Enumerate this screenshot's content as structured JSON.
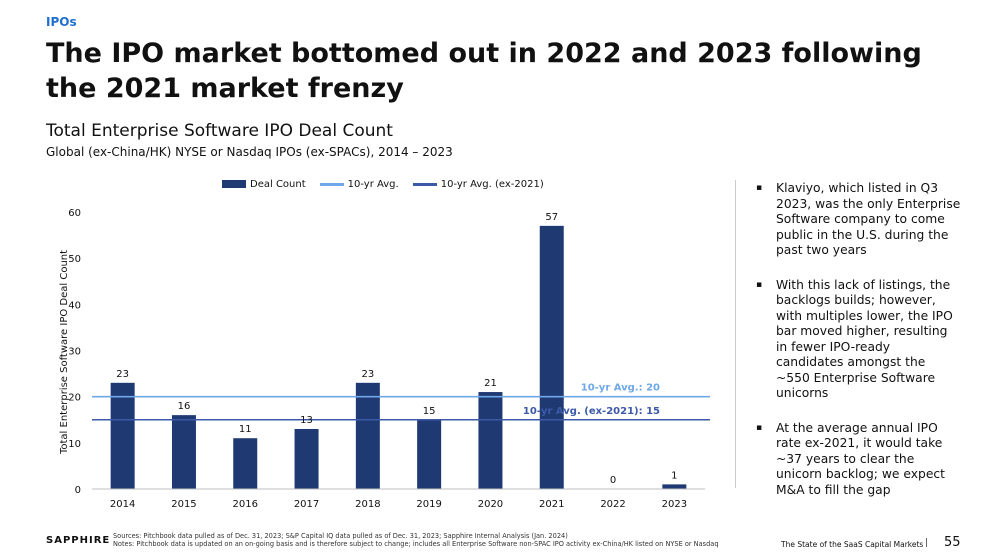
{
  "header": {
    "section": "IPOs",
    "headline": "The IPO market bottomed out in 2022 and 2023 following the 2021 market frenzy"
  },
  "chart_data": {
    "type": "bar",
    "title": "Total Enterprise Software IPO Deal Count",
    "subtitle": "Global (ex-China/HK) NYSE or Nasdaq IPOs (ex-SPACs), 2014 – 2023",
    "categories": [
      "2014",
      "2015",
      "2016",
      "2017",
      "2018",
      "2019",
      "2020",
      "2021",
      "2022",
      "2023"
    ],
    "values": [
      23,
      16,
      11,
      13,
      23,
      15,
      21,
      57,
      0,
      1
    ],
    "data_labels": [
      "23",
      "16",
      "11",
      "13",
      "23",
      "15",
      "21",
      "57",
      "0",
      "1"
    ],
    "xlabel": "",
    "ylabel": "Total Enterprise Software IPO Deal Count",
    "ylim": [
      0,
      60
    ],
    "yticks": [
      0,
      10,
      20,
      30,
      40,
      50,
      60
    ],
    "grid": false,
    "legend": [
      {
        "label": "Deal Count",
        "color": "#1f3a73"
      },
      {
        "label": "10-yr Avg.",
        "color": "#6fa8e8"
      },
      {
        "label": "10-yr Avg. (ex-2021)",
        "color": "#3c5aa8"
      }
    ],
    "reference_lines": [
      {
        "name": "10-yr Avg.",
        "value": 20,
        "label": "10-yr Avg.: 20",
        "color": "#6fa8e8"
      },
      {
        "name": "10-yr Avg. (ex-2021)",
        "value": 15,
        "label": "10-yr Avg. (ex-2021): 15",
        "color": "#3c5aa8"
      }
    ],
    "colors": {
      "bar": "#1f3a73",
      "axis": "#bfbfbf"
    }
  },
  "bullets": [
    "Klaviyo, which listed in Q3 2023, was the only Enterprise Software company to come public in the U.S. during the past two years",
    "With this lack of listings, the backlogs builds; however, with multiples lower, the IPO bar moved higher, resulting in fewer IPO-ready candidates amongst the ~550 Enterprise Software unicorns",
    "At the average annual IPO rate ex-2021, it would take ~37 years to clear the unicorn backlog; we expect M&A to fill the gap"
  ],
  "bullet_symbol": "▪",
  "footer": {
    "logo": "SAPPHIRE",
    "sources": "Sources: Pitchbook data pulled as of Dec. 31, 2023; S&P Capital IQ data pulled as of Dec. 31, 2023; Sapphire Internal Analysis (Jan. 2024)",
    "notes": "Notes: Pitchbook data is updated on an on-going basis and is therefore subject to change; includes all Enterprise Software non-SPAC IPO activity ex-China/HK listed on NYSE or Nasdaq",
    "report_title": "The State of the SaaS Capital Markets",
    "separator": "|",
    "page_number": "55"
  }
}
